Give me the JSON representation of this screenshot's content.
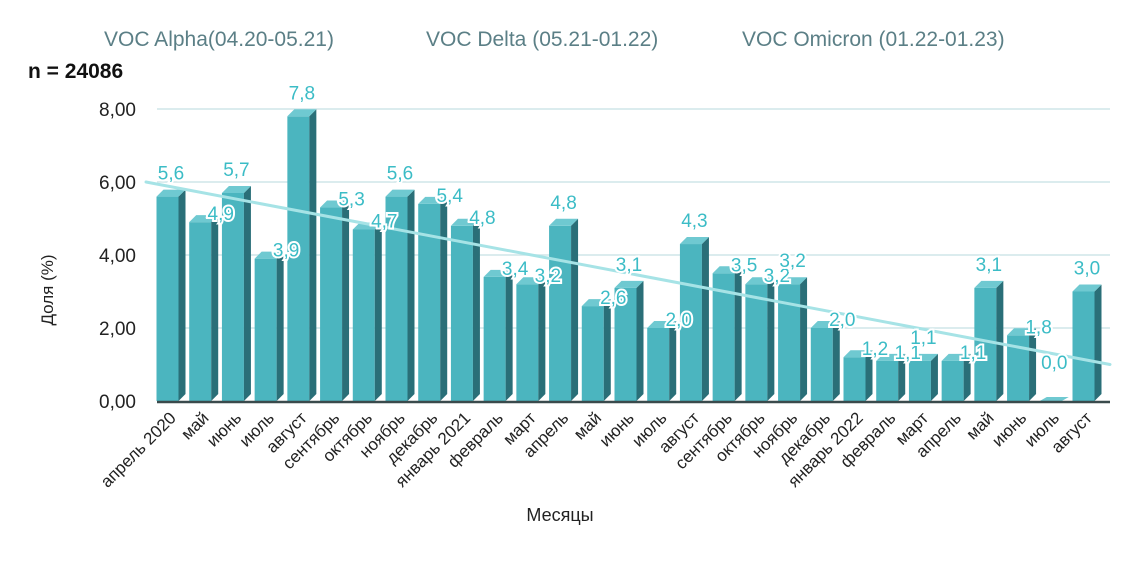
{
  "header": {
    "variants": [
      "VOC Alpha(04.20-05.21)",
      "VOC Delta (05.21-01.22)",
      "VOC Omicron (01.22-01.23)"
    ],
    "sample_size": "n = 24086"
  },
  "colors": {
    "bar_front": "#4bb5bf",
    "bar_side": "#2a6f78",
    "bar_top": "#6fc9d1",
    "label": "#3bbcc6",
    "trend": "#a6e3e6",
    "grid": "#cfe6e8",
    "axis_text": "#222222"
  },
  "chart_data": {
    "type": "bar",
    "title": "",
    "xlabel": "Месяцы",
    "ylabel": "Доля (%)",
    "ylim": [
      0,
      8
    ],
    "yticks": [
      0,
      2,
      4,
      6,
      8
    ],
    "ytick_labels": [
      "0,00",
      "2,00",
      "4,00",
      "6,00",
      "8,00"
    ],
    "grid": true,
    "categories": [
      "апрель 2020",
      "май",
      "июнь",
      "июль",
      "август",
      "сентябрь",
      "октябрь",
      "ноябрь",
      "декабрь",
      "январь 2021",
      "февраль",
      "март",
      "апрель",
      "май",
      "июнь",
      "июль",
      "август",
      "сентябрь",
      "октябрь",
      "ноябрь",
      "декабрь",
      "январь 2022",
      "февраль",
      "март",
      "апрель",
      "май",
      "июнь",
      "июль",
      "август"
    ],
    "values": [
      5.6,
      4.9,
      5.7,
      3.9,
      7.8,
      5.3,
      4.7,
      5.6,
      5.4,
      4.8,
      3.4,
      3.2,
      4.8,
      2.6,
      3.1,
      2.0,
      4.3,
      3.5,
      3.2,
      3.2,
      2.0,
      1.2,
      1.1,
      1.1,
      1.1,
      3.1,
      1.8,
      0.0,
      3.0
    ],
    "value_labels": [
      "5,6",
      "4,9",
      "5,7",
      "3,9",
      "7,8",
      "5,3",
      "4,7",
      "5,6",
      "5,4",
      "4,8",
      "3,4",
      "3,2",
      "4,8",
      "2,6",
      "3,1",
      "2,0",
      "4,3",
      "3,5",
      "3,2",
      "3,2",
      "2,0",
      "1,2",
      "1,1",
      "1,1",
      "1,1",
      "3,1",
      "1,8",
      "0,0",
      "3,0"
    ],
    "trendline": {
      "type": "linear",
      "start": 6.0,
      "end": 1.0
    },
    "legend": "none"
  }
}
